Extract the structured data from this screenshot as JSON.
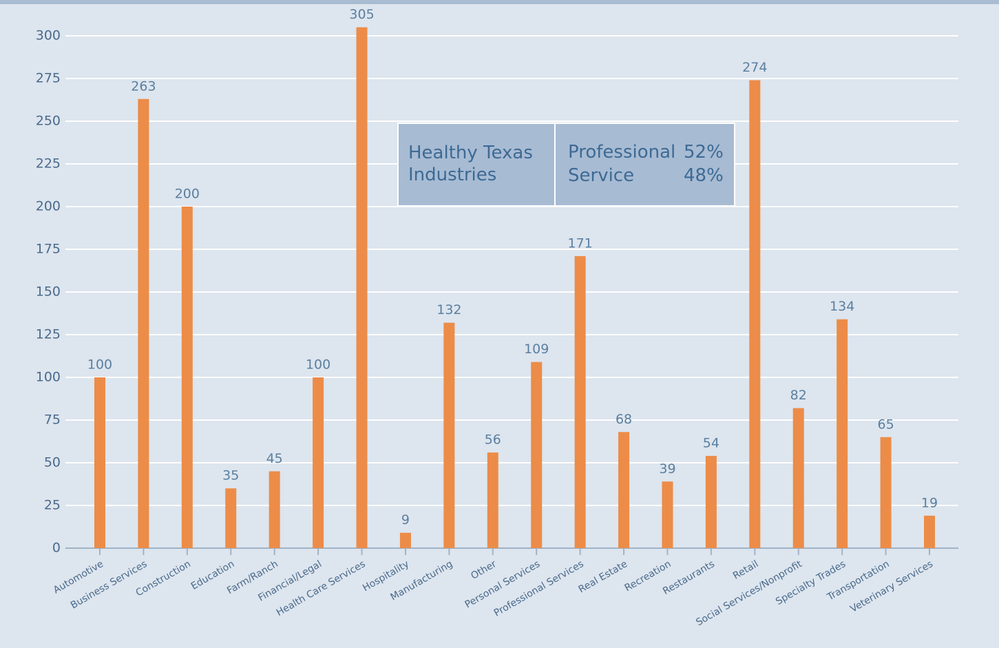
{
  "chart_data": {
    "type": "bar",
    "categories": [
      "Automotive",
      "Business Services",
      "Construction",
      "Education",
      "Farm/Ranch",
      "Financial/Legal",
      "Health Care Services",
      "Hospitality",
      "Manufacturing",
      "Other",
      "Personal Services",
      "Professional Services",
      "Real Estate",
      "Recreation",
      "Restaurants",
      "Retail",
      "Social Services/Nonprofit",
      "Specialty Trades",
      "Transportation",
      "Veterinary Services"
    ],
    "values": [
      100,
      263,
      200,
      35,
      45,
      100,
      305,
      9,
      132,
      56,
      109,
      171,
      68,
      39,
      54,
      274,
      82,
      134,
      65,
      19
    ],
    "color": "#ec8c48",
    "ylim": [
      0,
      300
    ],
    "yticks": [
      0,
      25,
      50,
      75,
      100,
      125,
      150,
      175,
      200,
      225,
      250,
      275,
      300
    ],
    "grid": true,
    "annotation": {
      "title": "Healthy Texas Industries",
      "rows": [
        {
          "label": "Professional",
          "value": "52%"
        },
        {
          "label": "Service",
          "value": "48%"
        }
      ]
    }
  }
}
